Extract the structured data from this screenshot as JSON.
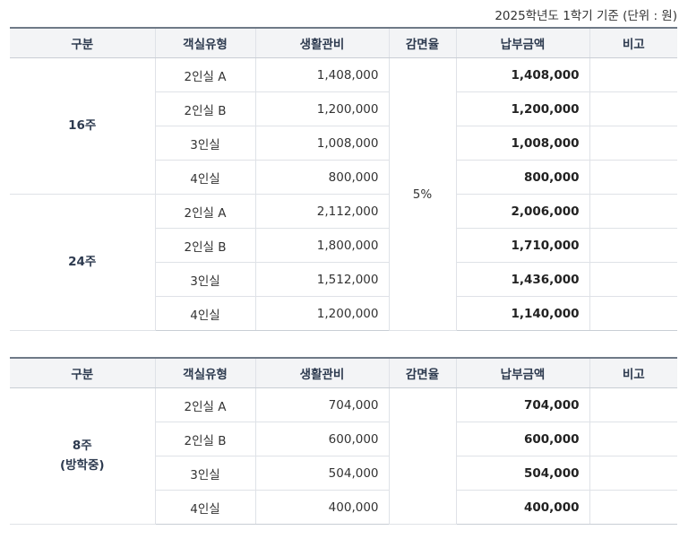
{
  "caption": "2025학년도 1학기 기준 (단위 : 원)",
  "headers": {
    "category": "구분",
    "room_type": "객실유형",
    "living_fee": "생활관비",
    "discount_rate": "감면율",
    "payment": "납부금액",
    "note": "비고"
  },
  "table1": {
    "group16": {
      "label": "16주",
      "rows": [
        {
          "room": "2인실 A",
          "fee": "1,408,000",
          "pay": "1,408,000",
          "note": ""
        },
        {
          "room": "2인실 B",
          "fee": "1,200,000",
          "pay": "1,200,000",
          "note": ""
        },
        {
          "room": "3인실",
          "fee": "1,008,000",
          "pay": "1,008,000",
          "note": ""
        },
        {
          "room": "4인실",
          "fee": "800,000",
          "pay": "800,000",
          "note": ""
        }
      ]
    },
    "group24": {
      "label": "24주",
      "rate": "5%",
      "rows": [
        {
          "room": "2인실 A",
          "fee": "2,112,000",
          "pay": "2,006,000",
          "note": ""
        },
        {
          "room": "2인실 B",
          "fee": "1,800,000",
          "pay": "1,710,000",
          "note": ""
        },
        {
          "room": "3인실",
          "fee": "1,512,000",
          "pay": "1,436,000",
          "note": ""
        },
        {
          "room": "4인실",
          "fee": "1,200,000",
          "pay": "1,140,000",
          "note": ""
        }
      ]
    }
  },
  "table2": {
    "group8": {
      "label_line1": "8주",
      "label_line2": "(방학중)",
      "rows": [
        {
          "room": "2인실 A",
          "fee": "704,000",
          "pay": "704,000",
          "note": ""
        },
        {
          "room": "2인실 B",
          "fee": "600,000",
          "pay": "600,000",
          "note": ""
        },
        {
          "room": "3인실",
          "fee": "504,000",
          "pay": "504,000",
          "note": ""
        },
        {
          "room": "4인실",
          "fee": "400,000",
          "pay": "400,000",
          "note": ""
        }
      ]
    }
  }
}
